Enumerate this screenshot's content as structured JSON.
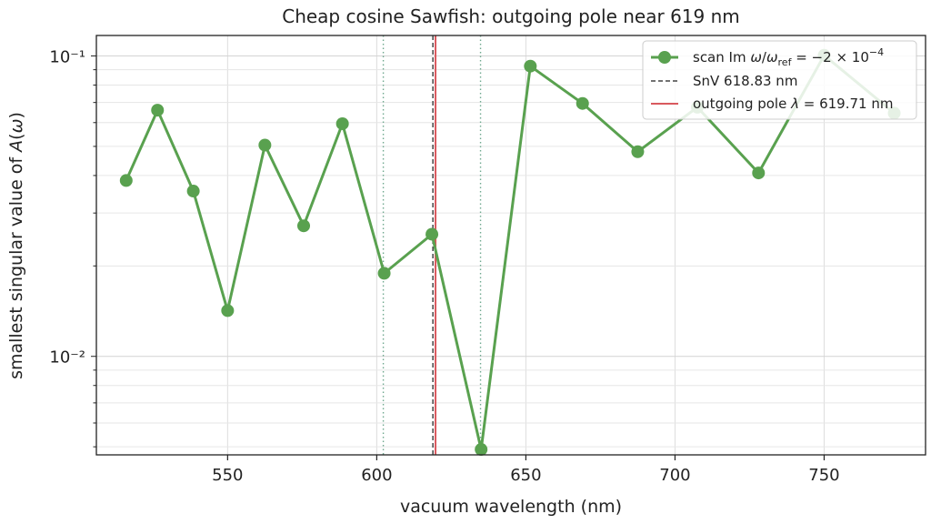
{
  "chart_data": {
    "type": "line",
    "title": "Cheap cosine Sawfish: outgoing pole near 619 nm",
    "xlabel": "vacuum wavelength (nm)",
    "ylabel": "smallest singular value of A(ω)",
    "xlim": [
      506,
      784
    ],
    "ylim": [
      0.0047,
      0.117
    ],
    "yscale": "log",
    "grid": true,
    "legend_position": "top-right",
    "x_ticks": [
      550,
      600,
      650,
      700,
      750
    ],
    "x_tick_labels": [
      "550",
      "600",
      "650",
      "700",
      "750"
    ],
    "y_ticks": [
      0.01,
      0.1
    ],
    "y_tick_labels": [
      "10⁻²",
      "10⁻¹"
    ],
    "series": [
      {
        "name": "scan Im ω/ωref = −2 × 10⁻⁴",
        "color": "#59a14f",
        "x": [
          516,
          526.5,
          538.5,
          550,
          562.5,
          575.5,
          588.5,
          602.5,
          618.5,
          635,
          651.5,
          669,
          687.5,
          707.5,
          728,
          750,
          773.5
        ],
        "y": [
          0.0385,
          0.066,
          0.0355,
          0.0142,
          0.0505,
          0.0272,
          0.0595,
          0.0189,
          0.0255,
          0.0049,
          0.0925,
          0.0695,
          0.048,
          0.0675,
          0.0408,
          0.1005,
          0.0645
        ]
      }
    ],
    "reference_lines": [
      {
        "name": "SnV 618.83 nm",
        "x": 618.83,
        "color": "#444444",
        "style": "dashed"
      },
      {
        "name": "outgoing pole λ = 619.71 nm",
        "x": 619.71,
        "color": "#d9595e",
        "style": "solid"
      },
      {
        "name": "",
        "x": 602.2,
        "color": "#6fa88f",
        "style": "dotted"
      },
      {
        "name": "",
        "x": 634.8,
        "color": "#6fa88f",
        "style": "dotted"
      }
    ]
  }
}
